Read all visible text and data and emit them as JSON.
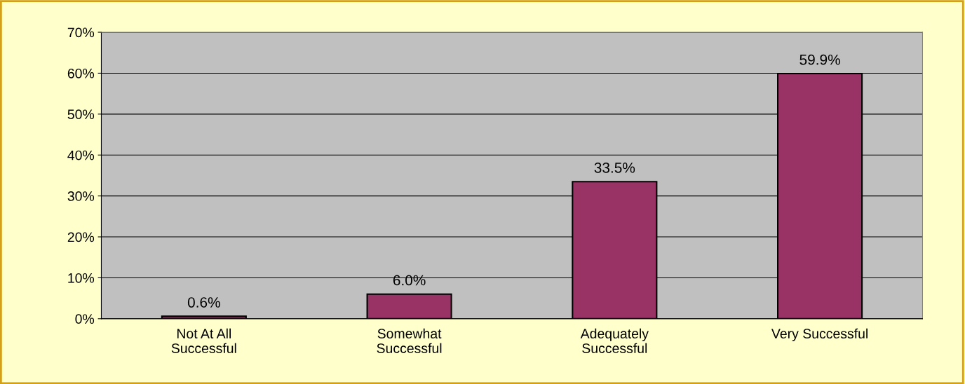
{
  "chart_data": {
    "type": "bar",
    "categories": [
      "Not At All\nSuccessful",
      "Somewhat\nSuccessful",
      "Adequately\nSuccessful",
      "Very Successful"
    ],
    "values": [
      0.6,
      6.0,
      33.5,
      59.9
    ],
    "value_labels": [
      "0.6%",
      "6.0%",
      "33.5%",
      "59.9%"
    ],
    "color": "#993366",
    "ylim": [
      0,
      70
    ],
    "yticks": [
      {
        "value": 0,
        "label": "0%"
      },
      {
        "value": 10,
        "label": "10%"
      },
      {
        "value": 20,
        "label": "20%"
      },
      {
        "value": 30,
        "label": "30%"
      },
      {
        "value": 40,
        "label": "40%"
      },
      {
        "value": 50,
        "label": "50%"
      },
      {
        "value": 60,
        "label": "60%"
      },
      {
        "value": 70,
        "label": "70%"
      }
    ],
    "grid": "y"
  }
}
